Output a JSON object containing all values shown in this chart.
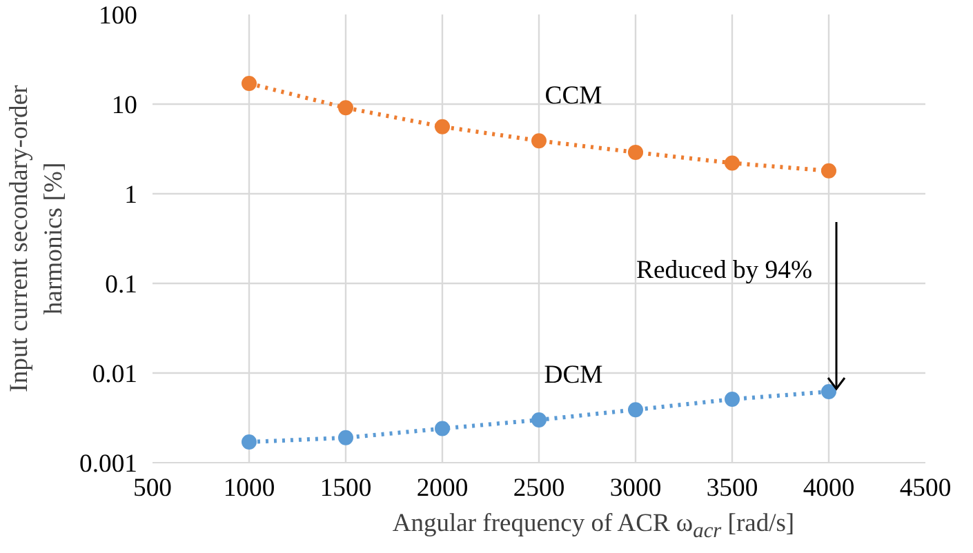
{
  "chart_data": {
    "type": "line",
    "xlabel": "Angular frequency of ACR ω$_{acr}$ [rad/s]",
    "ylabel": "Input current secondary-order\nharmonics [%]",
    "x": [
      1000,
      1500,
      2000,
      2500,
      3000,
      3500,
      4000
    ],
    "series": [
      {
        "name": "CCM",
        "color": "#ed7d31",
        "values": [
          17,
          9.1,
          5.6,
          3.9,
          2.9,
          2.2,
          1.8
        ]
      },
      {
        "name": "DCM",
        "color": "#5b9bd5",
        "values": [
          0.0017,
          0.0019,
          0.0024,
          0.003,
          0.0039,
          0.0051,
          0.0062
        ]
      }
    ],
    "annotations": [
      "Reduced by 94%"
    ],
    "log": "y",
    "xlim": [
      500,
      4500
    ],
    "xticks": [
      500,
      1000,
      1500,
      2000,
      2500,
      3000,
      3500,
      4000,
      4500
    ],
    "ylim": [
      0.001,
      100
    ],
    "yticks": [
      0.001,
      0.01,
      0.1,
      1,
      10,
      100
    ],
    "grid": true,
    "legend": false,
    "marker": "circle",
    "line_style": "dotted"
  }
}
